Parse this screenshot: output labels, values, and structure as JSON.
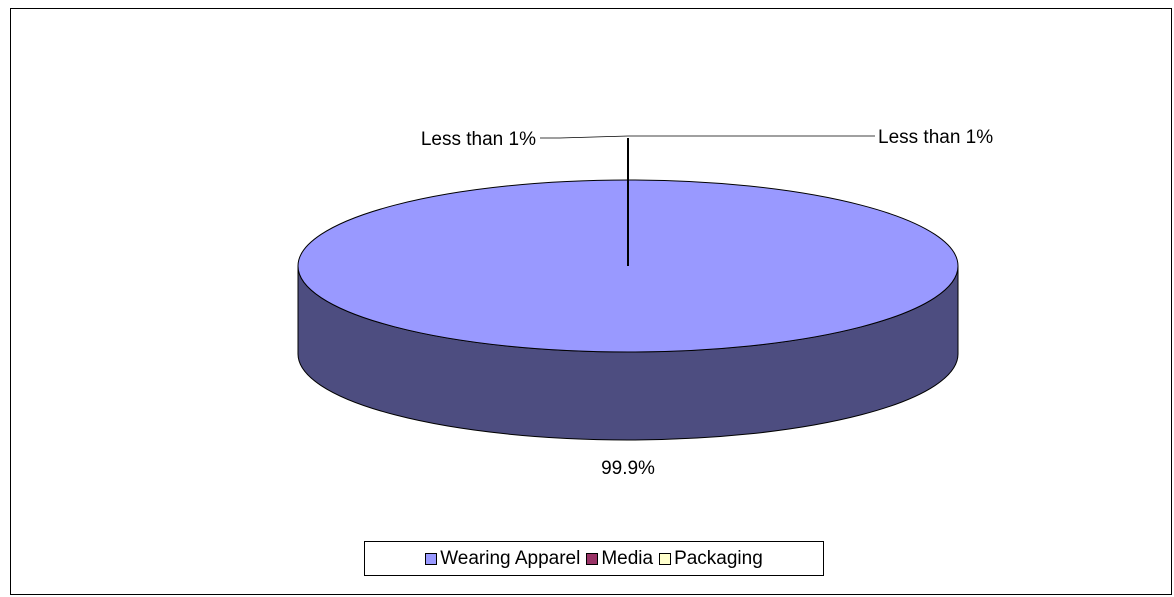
{
  "chart_data": {
    "type": "pie",
    "three_d": true,
    "slices": [
      {
        "name": "Wearing Apparel",
        "value": 99.9,
        "label": "99.9%",
        "color": "#9999ff"
      },
      {
        "name": "Media",
        "value": 0.05,
        "label": "Less than 1%",
        "color": "#993366"
      },
      {
        "name": "Packaging",
        "value": 0.05,
        "label": "Less than 1%",
        "color": "#ffffcc"
      }
    ],
    "legend": {
      "position": "bottom",
      "items": [
        "Wearing Apparel",
        "Media",
        "Packaging"
      ]
    },
    "colors": {
      "top": "#9999ff",
      "side": "#4d4d80",
      "outline": "#000000"
    }
  }
}
